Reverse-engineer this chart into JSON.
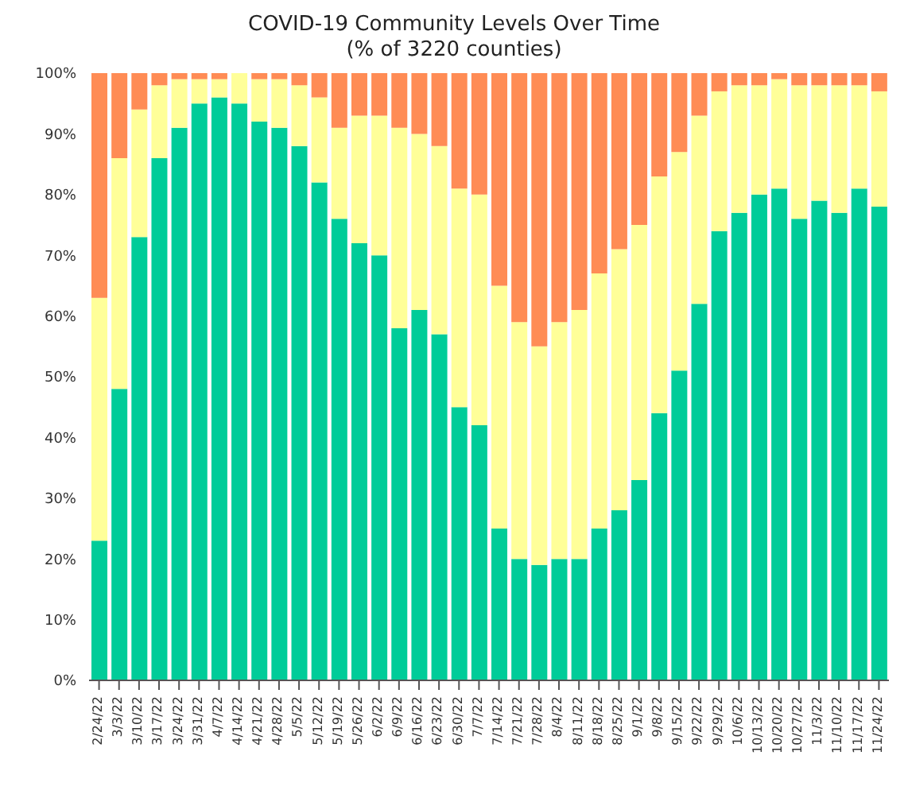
{
  "chart_data": {
    "type": "bar",
    "stacked": true,
    "title": "COVID-19 Community Levels Over Time",
    "subtitle": "(% of 3220 counties)",
    "categories": [
      "2/24/22",
      "3/3/22",
      "3/10/22",
      "3/17/22",
      "3/24/22",
      "3/31/22",
      "4/7/22",
      "4/14/22",
      "4/21/22",
      "4/28/22",
      "5/5/22",
      "5/12/22",
      "5/19/22",
      "5/26/22",
      "6/2/22",
      "6/9/22",
      "6/16/22",
      "6/23/22",
      "6/30/22",
      "7/7/22",
      "7/14/22",
      "7/21/22",
      "7/28/22",
      "8/4/22",
      "8/11/22",
      "8/18/22",
      "8/25/22",
      "9/1/22",
      "9/8/22",
      "9/15/22",
      "9/22/22",
      "9/29/22",
      "10/6/22",
      "10/13/22",
      "10/20/22",
      "10/27/22",
      "11/3/22",
      "11/10/22",
      "11/17/22",
      "11/24/22"
    ],
    "series": [
      {
        "color": "#00cc99",
        "values": [
          23,
          48,
          73,
          86,
          91,
          95,
          96,
          95,
          92,
          91,
          88,
          82,
          76,
          72,
          70,
          58,
          61,
          57,
          45,
          42,
          25,
          20,
          19,
          20,
          20,
          25,
          28,
          33,
          44,
          51,
          62,
          74,
          77,
          80,
          81,
          76,
          79,
          77,
          81,
          78
        ]
      },
      {
        "color": "#ffff99",
        "values": [
          40,
          38,
          21,
          12,
          8,
          4,
          3,
          5,
          7,
          8,
          10,
          14,
          15,
          21,
          23,
          33,
          29,
          31,
          36,
          38,
          40,
          39,
          36,
          39,
          41,
          42,
          43,
          42,
          39,
          36,
          31,
          23,
          21,
          18,
          18,
          22,
          19,
          21,
          17,
          19
        ]
      },
      {
        "color": "#ff8c55",
        "values": [
          37,
          14,
          6,
          2,
          1,
          1,
          1,
          0,
          1,
          1,
          2,
          4,
          9,
          7,
          7,
          9,
          10,
          12,
          19,
          20,
          35,
          41,
          45,
          41,
          39,
          33,
          29,
          25,
          17,
          13,
          7,
          3,
          2,
          2,
          1,
          2,
          2,
          2,
          2,
          3
        ]
      }
    ],
    "ylim": [
      0,
      100
    ],
    "yticks": [
      {
        "value": 0,
        "label": "0%"
      },
      {
        "value": 10,
        "label": "10%"
      },
      {
        "value": 20,
        "label": "20%"
      },
      {
        "value": 30,
        "label": "30%"
      },
      {
        "value": 40,
        "label": "40%"
      },
      {
        "value": 50,
        "label": "50%"
      },
      {
        "value": 60,
        "label": "60%"
      },
      {
        "value": 70,
        "label": "70%"
      },
      {
        "value": 80,
        "label": "80%"
      },
      {
        "value": 90,
        "label": "90%"
      },
      {
        "value": 100,
        "label": "100%"
      }
    ]
  }
}
